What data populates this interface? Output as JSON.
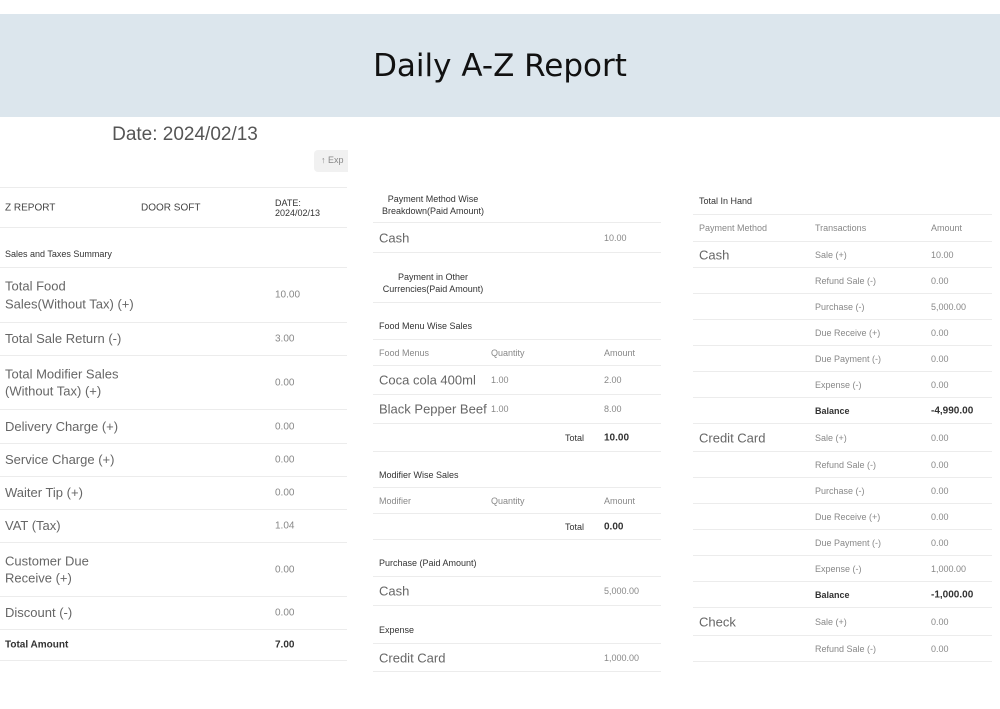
{
  "title": "Daily A-Z Report",
  "date_title": "Date: 2024/02/13",
  "export_label": "Exp",
  "export_icon": "share-icon",
  "left": {
    "header": {
      "col1": "Z REPORT",
      "col2": "DOOR SOFT",
      "col3": "DATE: 2024/02/13"
    },
    "section": "Sales and Taxes Summary",
    "rows": [
      {
        "label": "Total Food Sales(Without Tax) (+)",
        "value": "10.00"
      },
      {
        "label": "Total Sale Return (-)",
        "value": "3.00"
      },
      {
        "label": "Total Modifier Sales (Without Tax) (+)",
        "value": "0.00"
      },
      {
        "label": "Delivery Charge (+)",
        "value": "0.00"
      },
      {
        "label": "Service Charge (+)",
        "value": "0.00"
      },
      {
        "label": "Waiter Tip (+)",
        "value": "0.00"
      },
      {
        "label": "VAT (Tax)",
        "value": "1.04"
      },
      {
        "label": "Customer Due Receive (+)",
        "value": "0.00"
      },
      {
        "label": "Discount (-)",
        "value": "0.00"
      }
    ],
    "total": {
      "label": "Total Amount",
      "value": "7.00"
    }
  },
  "middle": {
    "payment_breakdown_title": "Payment Method Wise Breakdown(Paid Amount)",
    "payment_breakdown": [
      {
        "method": "Cash",
        "amount": "10.00"
      }
    ],
    "other_currencies_title": "Payment in Other Currencies(Paid Amount)",
    "food_menu_title": "Food Menu Wise Sales",
    "food_menu_headers": [
      "Food Menus",
      "Quantity",
      "Amount"
    ],
    "food_menu_items": [
      {
        "name": "Coca cola 400ml",
        "qty": "1.00",
        "amount": "2.00"
      },
      {
        "name": "Black Pepper Beef",
        "qty": "1.00",
        "amount": "8.00"
      }
    ],
    "food_menu_total": {
      "label": "Total",
      "value": "10.00"
    },
    "modifier_title": "Modifier Wise Sales",
    "modifier_headers": [
      "Modifier",
      "Quantity",
      "Amount"
    ],
    "modifier_total": {
      "label": "Total",
      "value": "0.00"
    },
    "purchase_title": "Purchase (Paid Amount)",
    "purchase": [
      {
        "method": "Cash",
        "amount": "5,000.00"
      }
    ],
    "expense_title": "Expense",
    "expense": [
      {
        "method": "Credit Card",
        "amount": "1,000.00"
      }
    ]
  },
  "right": {
    "title": "Total In Hand",
    "headers": [
      "Payment Method",
      "Transactions",
      "Amount"
    ],
    "groups": [
      {
        "method": "Cash",
        "rows": [
          {
            "t": "Sale (+)",
            "a": "10.00"
          },
          {
            "t": "Refund Sale (-)",
            "a": "0.00"
          },
          {
            "t": "Purchase (-)",
            "a": "5,000.00"
          },
          {
            "t": "Due Receive (+)",
            "a": "0.00"
          },
          {
            "t": "Due Payment (-)",
            "a": "0.00"
          },
          {
            "t": "Expense (-)",
            "a": "0.00"
          },
          {
            "t": "Balance",
            "a": "-4,990.00",
            "bold": true
          }
        ]
      },
      {
        "method": "Credit Card",
        "rows": [
          {
            "t": "Sale (+)",
            "a": "0.00"
          },
          {
            "t": "Refund Sale (-)",
            "a": "0.00"
          },
          {
            "t": "Purchase (-)",
            "a": "0.00"
          },
          {
            "t": "Due Receive (+)",
            "a": "0.00"
          },
          {
            "t": "Due Payment (-)",
            "a": "0.00"
          },
          {
            "t": "Expense (-)",
            "a": "1,000.00"
          },
          {
            "t": "Balance",
            "a": "-1,000.00",
            "bold": true
          }
        ]
      },
      {
        "method": "Check",
        "rows": [
          {
            "t": "Sale (+)",
            "a": "0.00"
          },
          {
            "t": "Refund Sale (-)",
            "a": "0.00"
          }
        ]
      }
    ]
  }
}
